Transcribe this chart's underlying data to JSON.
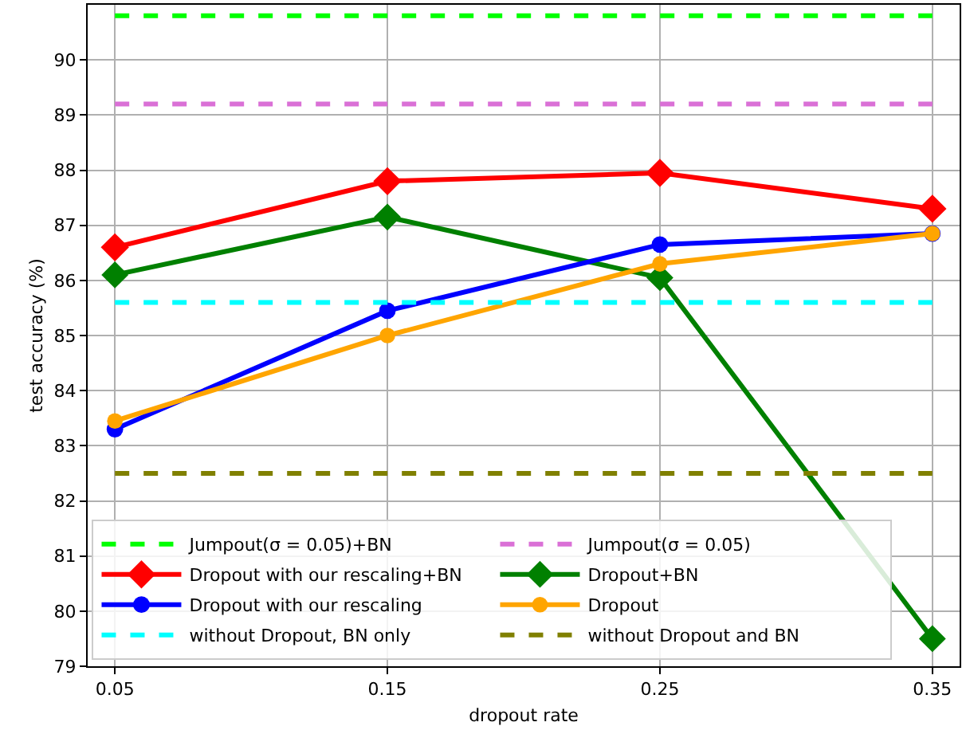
{
  "chart_data": {
    "type": "line",
    "xlabel": "dropout rate",
    "ylabel": "test accuracy (%)",
    "x": [
      0.05,
      0.15,
      0.25,
      0.35
    ],
    "xlim": [
      0.04,
      0.36
    ],
    "xticks": [
      0.05,
      0.15,
      0.25,
      0.35
    ],
    "ylim": [
      79,
      91
    ],
    "yticks": [
      79,
      80,
      81,
      82,
      83,
      84,
      85,
      86,
      87,
      88,
      89,
      90
    ],
    "grid": true,
    "legend": "bottom",
    "series": [
      {
        "name": "Jumpout(σ = 0.05)+BN",
        "color": "#00ff00",
        "values": [
          90.8,
          90.8,
          90.8,
          90.8
        ],
        "line_style": "dashed",
        "marker": "none"
      },
      {
        "name": "Jumpout(σ = 0.05)",
        "color": "#da70d6",
        "values": [
          89.2,
          89.2,
          89.2,
          89.2
        ],
        "line_style": "dashed",
        "marker": "none"
      },
      {
        "name": "Dropout with our rescaling+BN",
        "color": "#ff0000",
        "values": [
          86.6,
          87.8,
          87.95,
          87.3
        ],
        "line_style": "solid",
        "marker": "diamond"
      },
      {
        "name": "Dropout+BN",
        "color": "#008000",
        "values": [
          86.1,
          87.15,
          86.05,
          79.5
        ],
        "line_style": "solid",
        "marker": "diamond"
      },
      {
        "name": "Dropout with our rescaling",
        "color": "#0000ff",
        "values": [
          83.3,
          85.45,
          86.65,
          86.85
        ],
        "line_style": "solid",
        "marker": "circle"
      },
      {
        "name": "Dropout",
        "color": "#ffa500",
        "values": [
          83.45,
          85.0,
          86.3,
          86.85
        ],
        "line_style": "solid",
        "marker": "circle"
      },
      {
        "name": "without Dropout, BN only",
        "color": "#00ffff",
        "values": [
          85.6,
          85.6,
          85.6,
          85.6
        ],
        "line_style": "dashed",
        "marker": "none"
      },
      {
        "name": "without Dropout and BN",
        "color": "#808000",
        "values": [
          82.5,
          82.5,
          82.5,
          82.5
        ],
        "line_style": "dashed",
        "marker": "none"
      }
    ]
  }
}
